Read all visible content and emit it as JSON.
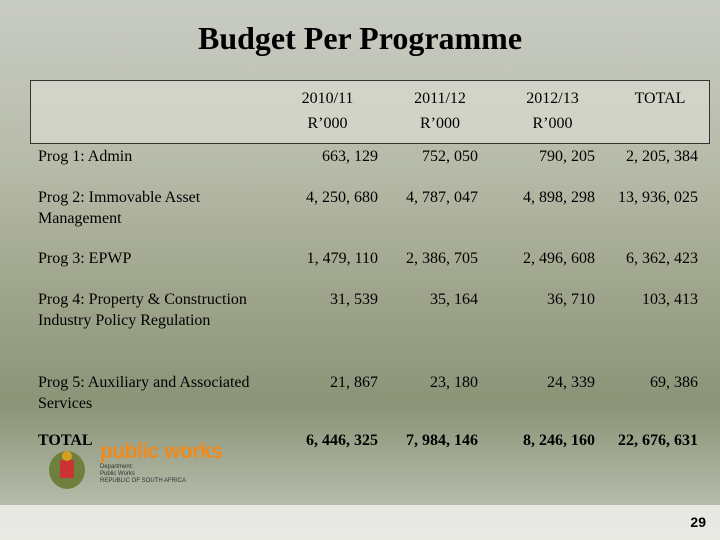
{
  "title": "Budget Per Programme",
  "table": {
    "columns": [
      {
        "year": "2010/11",
        "unit": "R’000"
      },
      {
        "year": "2011/12",
        "unit": "R’000"
      },
      {
        "year": "2012/13",
        "unit": "R’000"
      },
      {
        "year": "TOTAL"
      }
    ],
    "rows": [
      [
        "Prog 1:  Admin",
        "663, 129",
        "752, 050",
        "790, 205",
        "2, 205, 384"
      ],
      [
        "Prog 2:  Immovable Asset Management",
        "4, 250, 680",
        "4, 787, 047",
        "4, 898, 298",
        "13, 936, 025"
      ],
      [
        "Prog 3:  EPWP",
        "1, 479, 110",
        "2, 386, 705",
        "2, 496, 608",
        "6, 362, 423"
      ],
      [
        "Prog 4:  Property & Construction Industry Policy Regulation",
        "31, 539",
        "35, 164",
        "36, 710",
        "103, 413"
      ],
      [
        "Prog 5:  Auxiliary and Associated Services",
        "21, 867",
        "23, 180",
        "24, 339",
        "69, 386"
      ],
      [
        "TOTAL",
        "6, 446, 325",
        "7, 984, 146",
        "8, 246, 160",
        "22, 676, 631"
      ]
    ]
  },
  "logo": {
    "name": "public works",
    "line1": "Department:",
    "line2": "Public Works",
    "line3": "REPUBLIC OF SOUTH AFRICA"
  },
  "page_number": "29"
}
